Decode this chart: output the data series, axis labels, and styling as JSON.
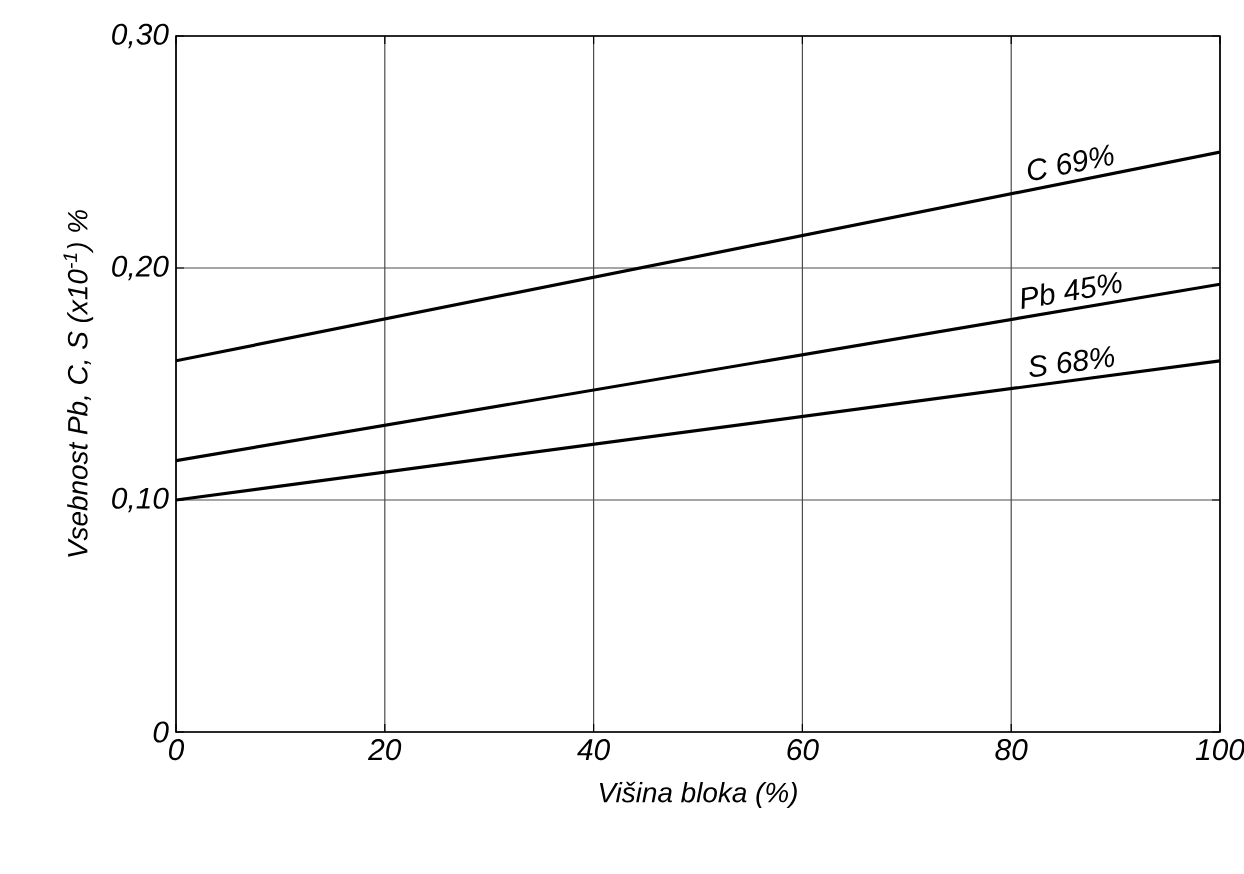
{
  "chart_data": {
    "type": "line",
    "xlabel": "Višina  bloka (%)",
    "ylabel": "Vsebnost  Pb, C, S (x10$^{-1}$) %",
    "x": [
      0,
      100
    ],
    "series": [
      {
        "name": "C 69%",
        "color": "#000000",
        "values": [
          0.16,
          0.25
        ]
      },
      {
        "name": "Pb 45%",
        "color": "#000000",
        "values": [
          0.117,
          0.193
        ]
      },
      {
        "name": "S 68%",
        "color": "#000000",
        "values": [
          0.1,
          0.16
        ]
      }
    ],
    "xlim": [
      0,
      100
    ],
    "ylim": [
      0,
      0.3
    ],
    "xticks": [
      0,
      20,
      40,
      60,
      80,
      100
    ],
    "yticks": [
      0,
      {
        "value": 0.1,
        "label": "0,10"
      },
      {
        "value": 0.2,
        "label": "0,20"
      },
      {
        "value": 0.3,
        "label": "0,30"
      }
    ],
    "grid": true,
    "marker": "none",
    "line_style": "solid",
    "legend": false
  }
}
